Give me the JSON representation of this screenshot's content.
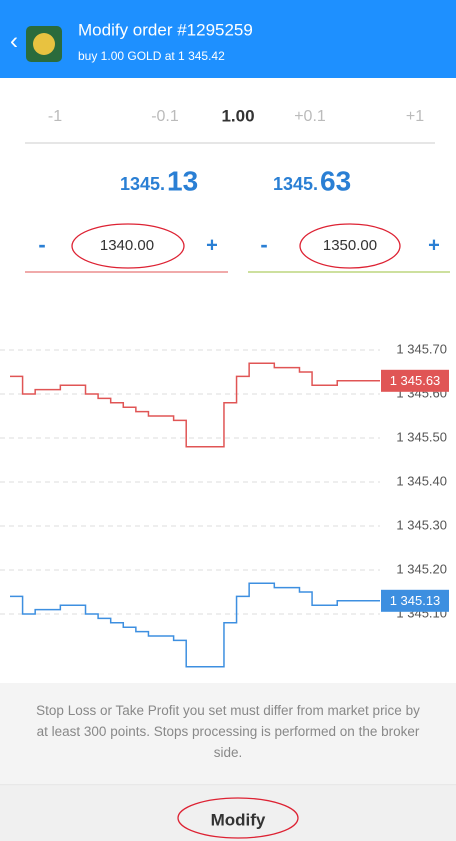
{
  "header": {
    "back": "‹",
    "title": "Modify order #1295259",
    "subtitle": "buy 1.00 GOLD at 1 345.42"
  },
  "volume": {
    "steps": [
      "-1",
      "-0.1",
      "1.00",
      "+0.1",
      "+1"
    ]
  },
  "prices": {
    "bid": {
      "head": "1345.",
      "tail": "13"
    },
    "ask": {
      "head": "1345.",
      "tail": "63"
    }
  },
  "stop_loss": {
    "minus": "-",
    "value": "1340.00",
    "plus": "+"
  },
  "take_profit": {
    "minus": "-",
    "value": "1350.00",
    "plus": "+"
  },
  "chart_data": {
    "type": "line",
    "ylim": [
      1344.95,
      1345.825
    ],
    "yticks": [
      {
        "value": 1345.7,
        "label": "1 345.70"
      },
      {
        "value": 1345.6,
        "label": "1 345.60"
      },
      {
        "value": 1345.5,
        "label": "1 345.50"
      },
      {
        "value": 1345.4,
        "label": "1 345.40"
      },
      {
        "value": 1345.3,
        "label": "1 345.30"
      },
      {
        "value": 1345.2,
        "label": "1 345.20"
      },
      {
        "value": 1345.1,
        "label": "1 345.10"
      }
    ],
    "grid": true,
    "series": [
      {
        "color": "#e05555",
        "price_label": {
          "value": 1345.63,
          "label": "1 345.63"
        },
        "values": [
          1345.64,
          1345.6,
          1345.61,
          1345.61,
          1345.62,
          1345.62,
          1345.6,
          1345.59,
          1345.58,
          1345.57,
          1345.56,
          1345.55,
          1345.55,
          1345.54,
          1345.48,
          1345.48,
          1345.48,
          1345.58,
          1345.64,
          1345.67,
          1345.67,
          1345.66,
          1345.66,
          1345.65,
          1345.62,
          1345.62,
          1345.63,
          1345.63,
          1345.63,
          1345.63
        ]
      },
      {
        "color": "#3d8fe0",
        "price_label": {
          "value": 1345.13,
          "label": "1 345.13"
        },
        "values": [
          1345.14,
          1345.1,
          1345.11,
          1345.11,
          1345.12,
          1345.12,
          1345.1,
          1345.09,
          1345.08,
          1345.07,
          1345.06,
          1345.05,
          1345.05,
          1345.04,
          1344.98,
          1344.98,
          1344.98,
          1345.08,
          1345.14,
          1345.17,
          1345.17,
          1345.16,
          1345.16,
          1345.15,
          1345.12,
          1345.12,
          1345.13,
          1345.13,
          1345.13,
          1345.13
        ]
      }
    ]
  },
  "notice": "Stop Loss or Take Profit you set must differ from market price by at least 300 points. Stops processing is performed on the broker side.",
  "button": "Modify"
}
